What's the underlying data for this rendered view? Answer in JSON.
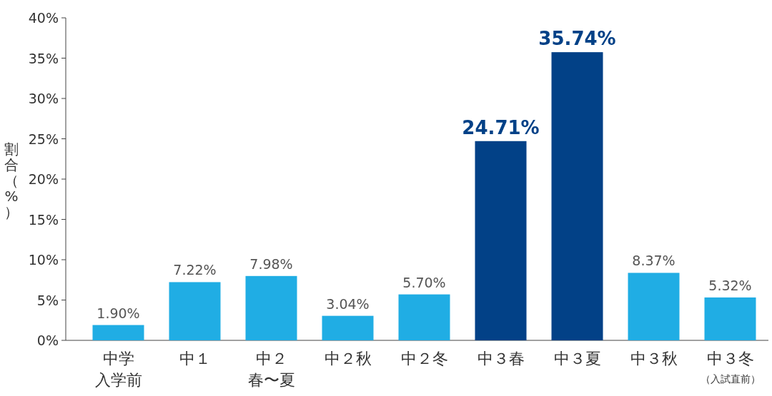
{
  "chart_data": {
    "type": "bar",
    "ylabel": "割合（%）",
    "categories": [
      "中学入学前",
      "中１",
      "中２春〜夏",
      "中２秋",
      "中２冬",
      "中３春",
      "中３夏",
      "中３秋",
      "中３冬（入試直前）"
    ],
    "values": [
      1.9,
      7.22,
      7.98,
      3.04,
      5.7,
      24.71,
      35.74,
      8.37,
      5.32
    ],
    "colors": [
      "#20ade4",
      "#20ade4",
      "#20ade4",
      "#20ade4",
      "#20ade4",
      "#024187",
      "#024187",
      "#20ade4",
      "#20ade4"
    ],
    "value_labels": [
      "1.90%",
      "7.22%",
      "7.98%",
      "3.04%",
      "5.70%",
      "24.71%",
      "35.74%",
      "8.37%",
      "5.32%"
    ],
    "ylim": [
      0,
      40
    ],
    "yticks": [
      {
        "value": 0,
        "label": "0%"
      },
      {
        "value": 5,
        "label": "5%"
      },
      {
        "value": 10,
        "label": "10%"
      },
      {
        "value": 15,
        "label": "15%"
      },
      {
        "value": 20,
        "label": "20%"
      },
      {
        "value": 25,
        "label": "25%"
      },
      {
        "value": 30,
        "label": "30%"
      },
      {
        "value": 35,
        "label": "35%"
      },
      {
        "value": 40,
        "label": "40%"
      }
    ],
    "grid": false
  }
}
